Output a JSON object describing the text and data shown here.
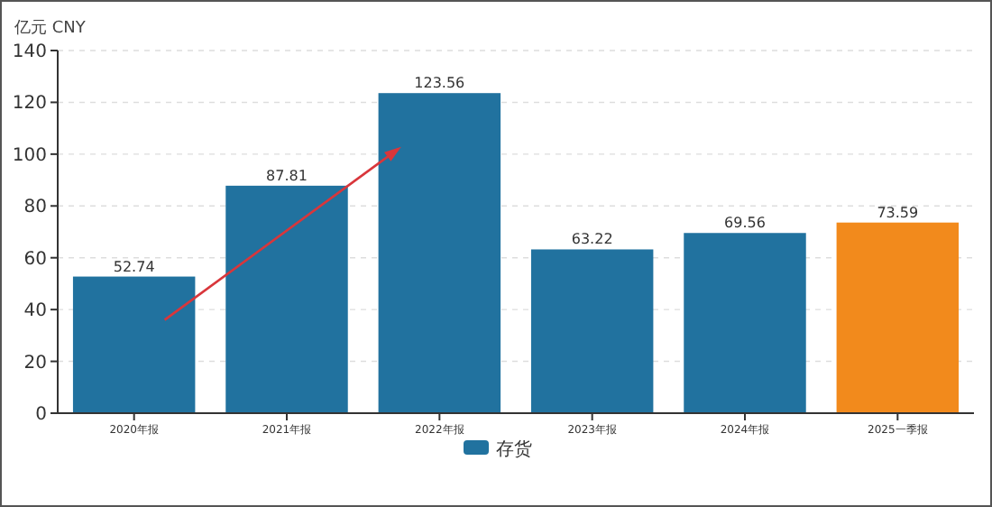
{
  "chart_data": {
    "type": "bar",
    "ylabel": "亿元  CNY",
    "categories": [
      "2020年报",
      "2021年报",
      "2022年报",
      "2023年报",
      "2024年报",
      "2025一季报"
    ],
    "series": [
      {
        "name": "存货",
        "color": "#21729f",
        "colors": [
          "#21729f",
          "#21729f",
          "#21729f",
          "#21729f",
          "#21729f",
          "#f28a1c"
        ],
        "values": [
          52.74,
          87.81,
          123.56,
          63.22,
          69.56,
          73.59
        ]
      }
    ],
    "ylim": [
      0,
      140
    ],
    "yticks": [
      0,
      20,
      40,
      60,
      80,
      100,
      120,
      140
    ],
    "grid": "y",
    "legend": "bottom",
    "data_labels": true
  }
}
